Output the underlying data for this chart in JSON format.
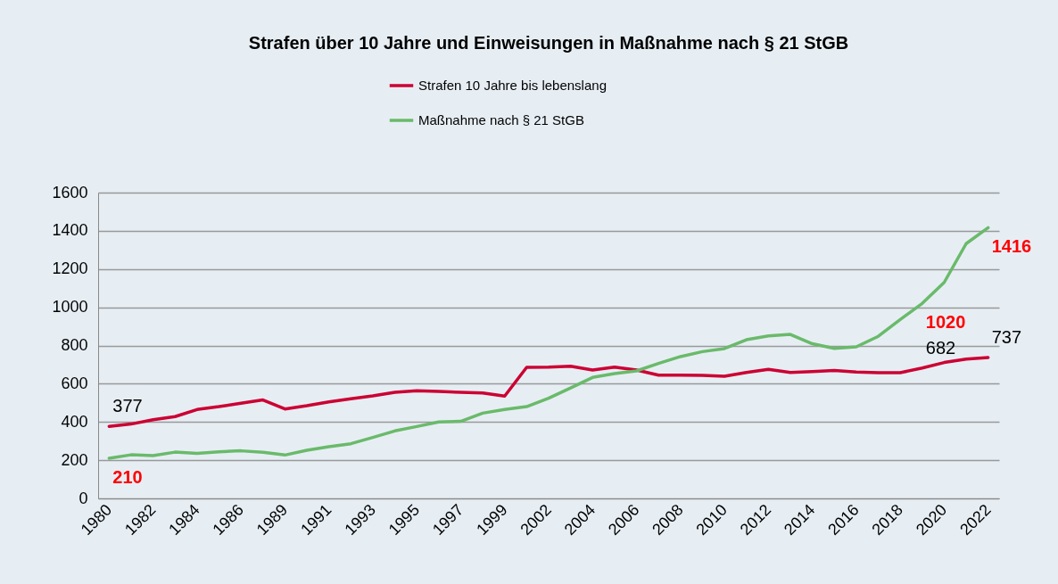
{
  "chart_data": {
    "type": "line",
    "title": "Strafen über 10 Jahre und Einweisungen in Maßnahme nach § 21 StGB",
    "categories": [
      "1980",
      null,
      "1982",
      null,
      "1984",
      null,
      "1986",
      null,
      "1989",
      null,
      "1991",
      null,
      "1993",
      null,
      "1995",
      null,
      "1997",
      null,
      "1999",
      null,
      "2002",
      null,
      "2004",
      null,
      "2006",
      null,
      "2008",
      null,
      "2010",
      null,
      "2012",
      null,
      "2014",
      null,
      "2016",
      null,
      "2018",
      null,
      "2020",
      null,
      "2022"
    ],
    "series": [
      {
        "name": "Strafen 10 Jahre bis lebenslang",
        "color": "#cc0033",
        "values": [
          377,
          389,
          412,
          428,
          465,
          480,
          498,
          515,
          468,
          485,
          505,
          521,
          536,
          555,
          563,
          560,
          555,
          552,
          535,
          686,
          687,
          692,
          672,
          687,
          672,
          645,
          645,
          644,
          639,
          659,
          675,
          659,
          664,
          669,
          661,
          658,
          658,
          682,
          711,
          729,
          737
        ],
        "value_labels": [
          "377",
          null,
          null,
          null,
          null,
          null,
          null,
          null,
          null,
          null,
          null,
          null,
          null,
          null,
          null,
          null,
          null,
          null,
          null,
          null,
          null,
          null,
          null,
          null,
          null,
          null,
          null,
          null,
          null,
          null,
          null,
          null,
          null,
          null,
          null,
          null,
          null,
          "682",
          null,
          null,
          "737"
        ]
      },
      {
        "name": "Maßnahme nach § 21 StGB",
        "color": "#6aba6a",
        "values": [
          210,
          228,
          224,
          242,
          236,
          244,
          249,
          241,
          227,
          252,
          271,
          286,
          319,
          353,
          376,
          400,
          403,
          446,
          465,
          480,
          524,
          578,
          633,
          653,
          667,
          706,
          742,
          768,
          784,
          830,
          850,
          858,
          809,
          785,
          793,
          848,
          936,
          1020,
          1130,
          1333,
          1416
        ],
        "value_labels": [
          "210",
          null,
          null,
          null,
          null,
          null,
          null,
          null,
          null,
          null,
          null,
          null,
          null,
          null,
          null,
          null,
          null,
          null,
          null,
          null,
          null,
          null,
          null,
          null,
          null,
          null,
          null,
          null,
          null,
          null,
          null,
          null,
          null,
          null,
          null,
          null,
          null,
          "1020",
          null,
          null,
          "1416"
        ]
      }
    ],
    "ylim": [
      0,
      1600
    ],
    "yticks": [
      0,
      200,
      400,
      600,
      800,
      1000,
      1200,
      1400,
      1600
    ],
    "grid": "y",
    "legend": "top",
    "line_style": "solid"
  }
}
